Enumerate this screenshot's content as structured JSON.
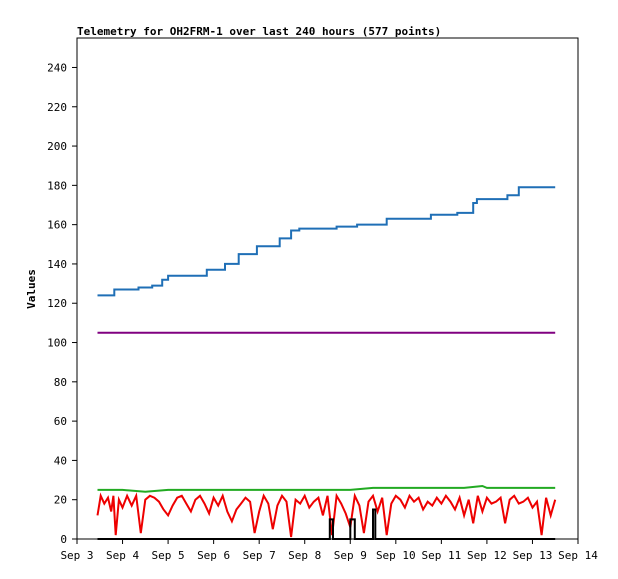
{
  "chart_data": {
    "type": "line",
    "title": "Telemetry for OH2FRM-1 over last 240 hours (577 points)",
    "xlabel": "",
    "ylabel": "Values",
    "grid": false,
    "legend": "none",
    "x_range_days": [
      3.0,
      14.0
    ],
    "xlim": [
      "Sep 3",
      "Sep 14"
    ],
    "ylim": [
      0,
      255
    ],
    "x_tick_labels": [
      "Sep 3",
      "Sep 4",
      "Sep 5",
      "Sep 6",
      "Sep 7",
      "Sep 8",
      "Sep 9",
      "Sep 10",
      "Sep 11",
      "Sep 12",
      "Sep 13",
      "Sep 14"
    ],
    "y_ticks": [
      0,
      20,
      40,
      60,
      80,
      100,
      120,
      140,
      160,
      180,
      200,
      220,
      240
    ],
    "series": [
      {
        "color": "#1f6fb6",
        "x": [
          3.45,
          3.82,
          3.82,
          4.35,
          4.35,
          4.65,
          4.65,
          4.87,
          4.87,
          5.0,
          5.0,
          5.85,
          5.85,
          6.25,
          6.25,
          6.55,
          6.55,
          6.95,
          6.95,
          7.45,
          7.45,
          7.7,
          7.7,
          7.88,
          7.88,
          8.7,
          8.7,
          9.15,
          9.15,
          9.8,
          9.8,
          10.77,
          10.77,
          11.35,
          11.35,
          11.7,
          11.7,
          11.78,
          11.78,
          12.45,
          12.45,
          12.7,
          12.7,
          13.5
        ],
        "y": [
          124,
          124,
          127,
          127,
          128,
          128,
          129,
          129,
          132,
          132,
          134,
          134,
          137,
          137,
          140,
          140,
          145,
          145,
          149,
          149,
          153,
          153,
          157,
          157,
          158,
          158,
          159,
          159,
          160,
          160,
          163,
          163,
          165,
          165,
          166,
          166,
          171,
          171,
          173,
          173,
          175,
          175,
          179,
          179
        ]
      },
      {
        "color": "#800080",
        "x": [
          3.45,
          13.5
        ],
        "y": [
          105,
          105
        ]
      },
      {
        "color": "#22aa22",
        "x": [
          3.45,
          4.0,
          4.5,
          5.0,
          5.5,
          6.0,
          6.5,
          7.0,
          7.5,
          8.0,
          8.5,
          9.0,
          9.5,
          10.0,
          10.5,
          11.0,
          11.5,
          11.9,
          12.0,
          12.5,
          13.0,
          13.5
        ],
        "y": [
          25,
          25,
          24,
          25,
          25,
          25,
          25,
          25,
          25,
          25,
          25,
          25,
          26,
          26,
          26,
          26,
          26,
          27,
          26,
          26,
          26,
          26
        ]
      },
      {
        "color": "#ee0000",
        "x": [
          3.45,
          3.52,
          3.6,
          3.68,
          3.75,
          3.8,
          3.85,
          3.92,
          4.0,
          4.1,
          4.2,
          4.3,
          4.4,
          4.5,
          4.6,
          4.7,
          4.8,
          4.9,
          5.0,
          5.1,
          5.2,
          5.3,
          5.4,
          5.5,
          5.6,
          5.7,
          5.8,
          5.9,
          6.0,
          6.1,
          6.2,
          6.3,
          6.4,
          6.5,
          6.6,
          6.7,
          6.8,
          6.9,
          7.0,
          7.1,
          7.2,
          7.3,
          7.4,
          7.5,
          7.6,
          7.7,
          7.8,
          7.9,
          8.0,
          8.1,
          8.2,
          8.3,
          8.4,
          8.5,
          8.6,
          8.7,
          8.8,
          8.9,
          9.0,
          9.1,
          9.2,
          9.3,
          9.4,
          9.5,
          9.6,
          9.7,
          9.8,
          9.9,
          10.0,
          10.1,
          10.2,
          10.3,
          10.4,
          10.5,
          10.6,
          10.7,
          10.8,
          10.9,
          11.0,
          11.1,
          11.2,
          11.3,
          11.4,
          11.5,
          11.6,
          11.7,
          11.8,
          11.9,
          12.0,
          12.1,
          12.2,
          12.3,
          12.4,
          12.5,
          12.6,
          12.7,
          12.8,
          12.9,
          13.0,
          13.1,
          13.2,
          13.3,
          13.4,
          13.5
        ],
        "y": [
          12,
          22,
          18,
          21,
          14,
          22,
          2,
          20,
          16,
          22,
          17,
          22,
          3,
          20,
          22,
          21,
          19,
          15,
          12,
          17,
          21,
          22,
          18,
          14,
          20,
          22,
          18,
          13,
          21,
          17,
          22,
          14,
          9,
          15,
          18,
          21,
          19,
          3,
          14,
          22,
          18,
          5,
          17,
          22,
          19,
          1,
          20,
          18,
          22,
          16,
          19,
          21,
          12,
          22,
          2,
          22,
          18,
          13,
          6,
          22,
          17,
          3,
          19,
          22,
          14,
          21,
          2,
          18,
          22,
          20,
          16,
          22,
          19,
          21,
          15,
          19,
          17,
          21,
          18,
          22,
          19,
          15,
          21,
          12,
          20,
          8,
          22,
          14,
          21,
          18,
          19,
          21,
          8,
          20,
          22,
          18,
          19,
          21,
          16,
          19,
          2,
          21,
          12,
          20
        ]
      },
      {
        "color": "#000000",
        "x": [
          3.45,
          8.55,
          8.55,
          8.62,
          8.62,
          9.0,
          9.0,
          9.1,
          9.1,
          9.5,
          9.5,
          9.55,
          9.55,
          9.6,
          9.6,
          13.5
        ],
        "y": [
          0,
          0,
          10,
          10,
          0,
          0,
          10,
          10,
          0,
          0,
          15,
          15,
          0,
          0,
          0,
          0
        ]
      }
    ]
  }
}
